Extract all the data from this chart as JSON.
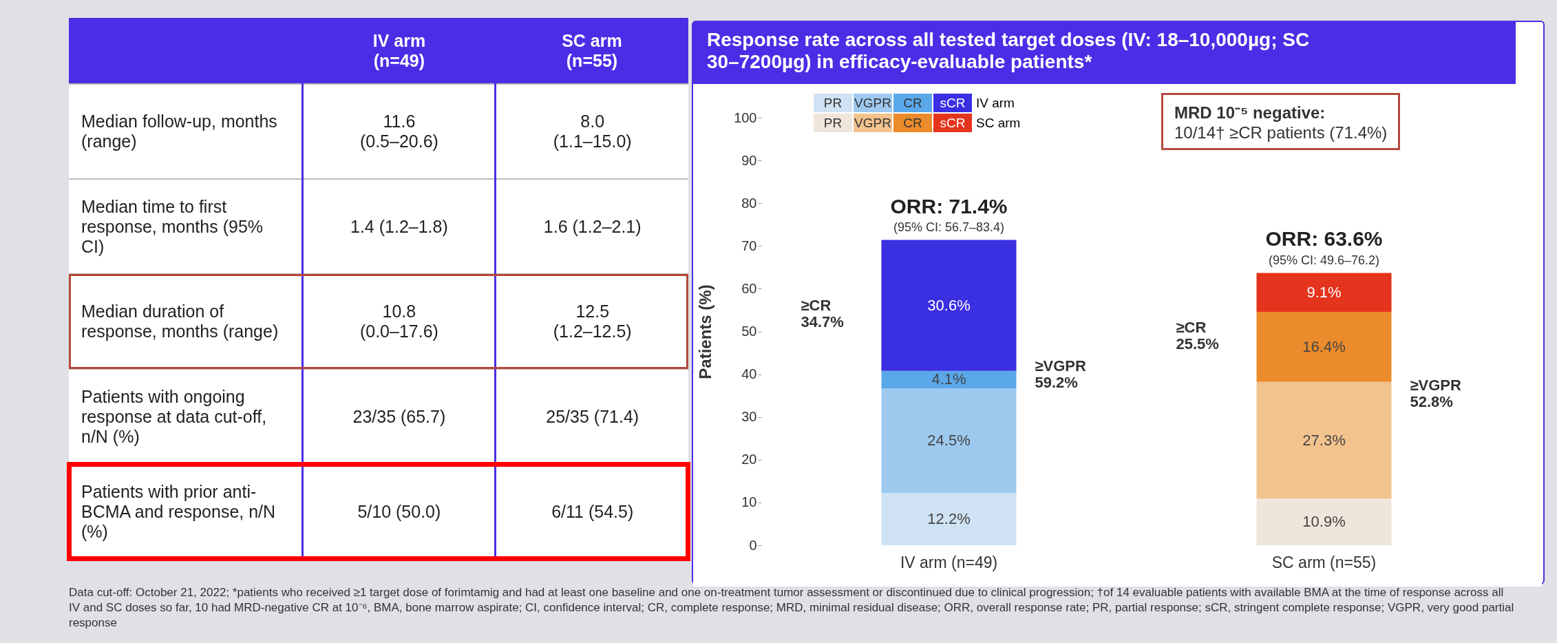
{
  "chart_data": [
    {
      "type": "other",
      "categories": [
        null,
        "IV arm\n(n=49)",
        "SC arm\n(n=55)"
      ],
      "y_categories": [
        "Median follow-up, months (range)",
        "Median time to first response, months (95% CI)",
        "Median duration of response, months (range)",
        "Patients with ongoing response at data cut-off, n/N (%)",
        "Patients with prior anti-BCMA and response, n/N (%)"
      ],
      "cell_labels": [
        [
          "11.6\n(0.5–20.6)",
          "8.0\n(1.1–15.0)"
        ],
        [
          "1.4 (1.2–1.8)",
          "1.6 (1.2–2.1)"
        ],
        [
          "10.8\n(0.0–17.6)",
          "12.5\n(1.2–12.5)"
        ],
        [
          "23/35 (65.7)",
          "25/35 (71.4)"
        ],
        [
          "5/10 (50.0)",
          "6/11 (54.5)"
        ]
      ],
      "annotations": [
        "Data cut-off: October 21, 2022; *patients who received ≥1 target dose of forimtamig and had at least one baseline and one on-treatment tumor assessment or discontinued due to clinical progression; †of 14 evaluable patients with available BMA at the time of response across all IV and SC doses so far, 10 had MRD-negative CR at 10⁻⁶, BMA, bone marrow aspirate; CI, confidence interval; CR, complete response; MRD, minimal residual disease; ORR, overall response rate; PR, partial response; sCR, stringent complete response; VGPR, very good partial response"
      ]
    },
    {
      "type": "bar",
      "stacked": true,
      "title": "Response rate across all tested target doses (IV: 18–10,000µg; SC 30–7200µg) in efficacy-evaluable patients*",
      "ylabel": "Patients (%)",
      "categories": [
        "IV arm (n=49)",
        "SC arm (n=55)"
      ],
      "series": [
        {
          "name": "PR",
          "colors": [
            "#cfe2f3",
            "#efe5da"
          ],
          "values": [
            12.2,
            10.9
          ],
          "value_labels": [
            "12.2%",
            "10.9%"
          ]
        },
        {
          "name": "VGPR",
          "colors": [
            "#9ec9ef",
            "#f2c38d"
          ],
          "values": [
            24.5,
            27.3
          ],
          "value_labels": [
            "24.5%",
            "27.3%"
          ]
        },
        {
          "name": "CR",
          "colors": [
            "#5aa8ea",
            "#ec8b2b"
          ],
          "values": [
            4.1,
            16.4
          ],
          "value_labels": [
            "4.1%",
            "16.4%"
          ]
        },
        {
          "name": "sCR",
          "colors": [
            "#3b2fe2",
            "#e5341d"
          ],
          "values": [
            30.6,
            9.1
          ],
          "value_labels": [
            "30.6%",
            "9.1%"
          ]
        }
      ],
      "totals": [
        "ORR: 71.4%",
        "ORR: 63.6%"
      ],
      "ylim": [
        0,
        100
      ],
      "yticks": [
        0,
        10,
        20,
        30,
        40,
        50,
        60,
        70,
        80,
        90,
        100
      ],
      "grid": false,
      "legend": "top left",
      "annotations": [
        "≥CR\n34.7%",
        "≥VGPR\n59.2%",
        "≥CR\n25.5%",
        "≥VGPR\n52.8%",
        {
          "text": "(95% CI: 56.7–83.4)",
          "x": "IV arm (n=49)",
          "y": 71.4
        },
        {
          "text": "(95% CI: 49.6–76.2)",
          "x": "SC arm (n=55)",
          "y": 63.6
        },
        "IV arm",
        "SC arm",
        "MRD 10⁻⁵ negative:",
        "10/14† ≥CR patients (71.4%)"
      ]
    }
  ]
}
